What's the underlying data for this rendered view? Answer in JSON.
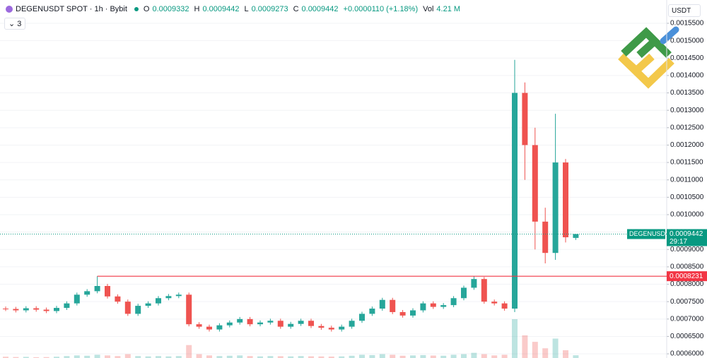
{
  "chart_data": {
    "type": "candlestick",
    "header": {
      "symbol": "DEGENUSDT SPOT · 1h · Bybit",
      "o_key": "O",
      "o": "0.0009332",
      "h_key": "H",
      "h": "0.0009442",
      "l_key": "L",
      "l": "0.0009273",
      "c_key": "C",
      "c": "0.0009442",
      "change": "+0.0000110 (+1.18%)",
      "vol_key": "Vol",
      "vol": "4.21 M"
    },
    "indicators": "3",
    "currency": "USDT",
    "up_color": "#26a69a",
    "down_color": "#ef5350",
    "ylim": [
      0.000588,
      0.001617
    ],
    "yticks": [
      {
        "value": 0.0006,
        "label": "0.0006000"
      },
      {
        "value": 0.00065,
        "label": "0.0006500"
      },
      {
        "value": 0.0007,
        "label": "0.0007000"
      },
      {
        "value": 0.00075,
        "label": "0.0007500"
      },
      {
        "value": 0.0008,
        "label": "0.0008000"
      },
      {
        "value": 0.00085,
        "label": "0.0008500"
      },
      {
        "value": 0.0009,
        "label": "0.0009000"
      },
      {
        "value": 0.00095,
        "label": "0.0009500"
      },
      {
        "value": 0.001,
        "label": "0.0010000"
      },
      {
        "value": 0.00105,
        "label": "0.0010500"
      },
      {
        "value": 0.0011,
        "label": "0.0011000"
      },
      {
        "value": 0.00115,
        "label": "0.0011500"
      },
      {
        "value": 0.0012,
        "label": "0.0012000"
      },
      {
        "value": 0.00125,
        "label": "0.0012500"
      },
      {
        "value": 0.0013,
        "label": "0.0013000"
      },
      {
        "value": 0.00135,
        "label": "0.0013500"
      },
      {
        "value": 0.0014,
        "label": "0.0014000"
      },
      {
        "value": 0.00145,
        "label": "0.0014500"
      },
      {
        "value": 0.0015,
        "label": "0.0015000"
      },
      {
        "value": 0.00155,
        "label": "0.0015500"
      }
    ],
    "level_line": {
      "value": 0.0008231,
      "label": "0.0008231",
      "color": "#f23645"
    },
    "last_price": {
      "name": "DEGENUSDT",
      "label": "0.0009442",
      "countdown": "29:17",
      "color": "#089981"
    },
    "open": [
      0.00073,
      0.000729,
      0.000725,
      0.000731,
      0.000727,
      0.000723,
      0.000732,
      0.000745,
      0.00077,
      0.00078,
      0.000795,
      0.000765,
      0.00075,
      0.000715,
      0.000738,
      0.000745,
      0.00076,
      0.000766,
      0.00077,
      0.000685,
      0.000678,
      0.00067,
      0.000682,
      0.00069,
      0.0007,
      0.000685,
      0.00069,
      0.000695,
      0.000678,
      0.000686,
      0.000695,
      0.00068,
      0.000675,
      0.00067,
      0.000678,
      0.000695,
      0.000715,
      0.00073,
      0.000755,
      0.00072,
      0.00071,
      0.000725,
      0.000745,
      0.000735,
      0.00074,
      0.00076,
      0.00079,
      0.000815,
      0.00075,
      0.000745,
      0.00073,
      0.00135,
      0.0012,
      0.00098,
      0.00089,
      0.00115,
      0.0009332
    ],
    "high": [
      0.000736,
      0.000735,
      0.000737,
      0.000737,
      0.000733,
      0.000738,
      0.000751,
      0.000776,
      0.000786,
      0.0008231,
      0.000801,
      0.000771,
      0.000756,
      0.000744,
      0.000751,
      0.000766,
      0.000772,
      0.000776,
      0.000776,
      0.000691,
      0.000684,
      0.000688,
      0.000696,
      0.000706,
      0.000706,
      0.000696,
      0.000701,
      0.000701,
      0.000692,
      0.000701,
      0.000701,
      0.000686,
      0.000681,
      0.000684,
      0.000701,
      0.000721,
      0.000736,
      0.000761,
      0.000761,
      0.000726,
      0.000731,
      0.000751,
      0.000751,
      0.000746,
      0.000766,
      0.000796,
      0.0008231,
      0.000821,
      0.000756,
      0.000751,
      0.001445,
      0.00138,
      0.00125,
      0.00102,
      0.00129,
      0.00116,
      0.0009442
    ],
    "low": [
      0.000723,
      0.000719,
      0.000719,
      0.000721,
      0.000717,
      0.000717,
      0.000726,
      0.000739,
      0.000764,
      0.000774,
      0.000759,
      0.000744,
      0.000709,
      0.000709,
      0.000732,
      0.000739,
      0.000754,
      0.00076,
      0.000679,
      0.000672,
      0.000664,
      0.000664,
      0.000676,
      0.000684,
      0.000679,
      0.000679,
      0.000684,
      0.000672,
      0.000672,
      0.00068,
      0.000674,
      0.000669,
      0.000664,
      0.000664,
      0.000672,
      0.000689,
      0.000709,
      0.000724,
      0.000714,
      0.000704,
      0.000704,
      0.000719,
      0.000729,
      0.000729,
      0.000734,
      0.000754,
      0.000784,
      0.000744,
      0.000739,
      0.000724,
      0.00072,
      0.0011,
      0.0009,
      0.00086,
      0.00087,
      0.00092,
      0.0009273
    ],
    "close": [
      0.000729,
      0.000725,
      0.000731,
      0.000727,
      0.000723,
      0.000732,
      0.000745,
      0.00077,
      0.00078,
      0.000795,
      0.000765,
      0.00075,
      0.000715,
      0.000738,
      0.000745,
      0.00076,
      0.000766,
      0.00077,
      0.000685,
      0.000678,
      0.00067,
      0.000682,
      0.00069,
      0.0007,
      0.000685,
      0.00069,
      0.000695,
      0.000678,
      0.000686,
      0.000695,
      0.00068,
      0.000675,
      0.00067,
      0.000678,
      0.000695,
      0.000715,
      0.00073,
      0.000755,
      0.00072,
      0.00071,
      0.000725,
      0.000745,
      0.000735,
      0.00074,
      0.00076,
      0.00079,
      0.000815,
      0.00075,
      0.000745,
      0.00073,
      0.00135,
      0.0012,
      0.00098,
      0.00089,
      0.00115,
      0.000935,
      0.0009442
    ],
    "volume": [
      2,
      1.5,
      1.8,
      1.2,
      1.4,
      2,
      3,
      4,
      3.5,
      5,
      4,
      3,
      6,
      3,
      2.5,
      3,
      2.5,
      3,
      20,
      6,
      4,
      3,
      3.5,
      4,
      3,
      2.5,
      3,
      2.8,
      2.5,
      3,
      2.6,
      2.4,
      2.2,
      2.5,
      3.5,
      5,
      4.5,
      6,
      5,
      3.5,
      4,
      4.5,
      3.8,
      3.5,
      5,
      6,
      8,
      6,
      4,
      5,
      60,
      35,
      25,
      15,
      30,
      12,
      4.21
    ]
  }
}
